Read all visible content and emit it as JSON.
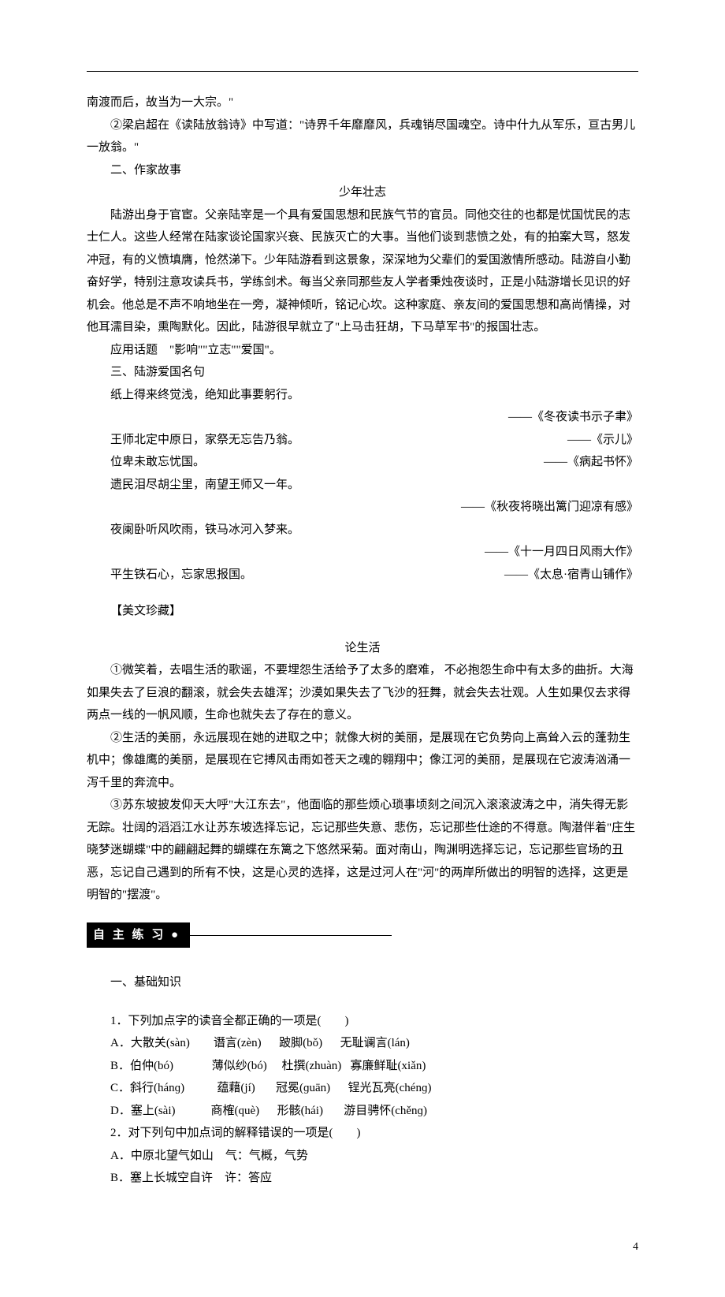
{
  "intro": {
    "p1": "南渡而后，故当为一大宗。\"",
    "p2": "②梁启超在《读陆放翁诗》中写道：\"诗界千年靡靡风，兵魂销尽国魂空。诗中什九从军乐，亘古男儿一放翁。\"",
    "h2": "二、作家故事",
    "title2": "少年壮志",
    "story": "陆游出身于官宦。父亲陆宰是一个具有爱国思想和民族气节的官员。同他交往的也都是忧国忧民的志士仁人。这些人经常在陆家谈论国家兴衰、民族灭亡的大事。当他们谈到悲愤之处，有的拍案大骂，怒发冲冠，有的义愤填膺，怆然涕下。少年陆游看到这景象，深深地为父辈们的爱国激情所感动。陆游自小勤奋好学，特别注意攻读兵书，学练剑术。每当父亲同那些友人学者秉烛夜谈时，正是小陆游增长见识的好机会。他总是不声不响地坐在一旁，凝神倾听，铭记心坎。这种家庭、亲友间的爱国思想和高尚情操，对他耳濡目染，熏陶默化。因此，陆游很早就立了\"上马击狂胡，下马草军书\"的报国壮志。",
    "topics": "应用话题　\"影响\"\"立志\"\"爱国\"。",
    "h3": "三、陆游爱国名句"
  },
  "quotes": [
    {
      "left": "纸上得来终觉浅，绝知此事要躬行。",
      "right": "——《冬夜读书示子聿》",
      "two_line": true
    },
    {
      "left": "王师北定中原日，家祭无忘告乃翁。",
      "right": "——《示儿》",
      "two_line": false
    },
    {
      "left": "位卑未敢忘忧国。",
      "right": "——《病起书怀》",
      "two_line": false
    },
    {
      "left": "遗民泪尽胡尘里，南望王师又一年。",
      "right": "——《秋夜将晓出篱门迎凉有感》",
      "two_line": true
    },
    {
      "left": "夜阑卧听风吹雨，铁马冰河入梦来。",
      "right": "——《十一月四日风雨大作》",
      "two_line": true
    },
    {
      "left": "平生铁石心，忘家思报国。",
      "right": "——《太息·宿青山铺作》",
      "two_line": false
    }
  ],
  "essay": {
    "bracket": "【美文珍藏】",
    "title": "论生活",
    "p1": "①微笑着，去唱生活的歌谣，不要埋怨生活给予了太多的磨难， 不必抱怨生命中有太多的曲折。大海如果失去了巨浪的翻滚，就会失去雄浑；沙漠如果失去了飞沙的狂舞，就会失去壮观。人生如果仅去求得两点一线的一帆风顺，生命也就失去了存在的意义。",
    "p2": "②生活的美丽，永远展现在她的进取之中；就像大树的美丽，是展现在它负势向上高耸入云的蓬勃生机中；像雄鹰的美丽，是展现在它搏风击雨如苍天之魂的翱翔中；像江河的美丽，是展现在它波涛汹涌一泻千里的奔流中。",
    "p3": "③苏东坡披发仰天大呼\"大江东去\"，他面临的那些烦心琐事顷刻之间沉入滚滚波涛之中，消失得无影无踪。壮阔的滔滔江水让苏东坡选择忘记，忘记那些失意、悲伤，忘记那些仕途的不得意。陶潜伴着\"庄生晓梦迷蝴蝶\"中的翩翩起舞的蝴蝶在东篱之下悠然采菊。面对南山，陶渊明选择忘记，忘记那些官场的丑恶，忘记自己遇到的所有不快，这是心灵的选择，这是过河人在\"河\"的两岸所做出的明智的选择，这更是明智的\"摆渡\"。"
  },
  "practice": {
    "badge": "自 主 练 习 ●",
    "h1": "一、基础知识",
    "q1": {
      "stem": "1．下列加点字的读音全都正确的一项是(　　)",
      "opts": [
        "A．大散关(sàn)        谮言(zèn)　  跛脚(bǒ)      无耻谰言(lán)",
        "B．伯仲(bó)　         薄似纱(bó)　 杜撰(zhuàn)   寡廉鲜耻(xiǎn)",
        "C．斜行(hánɡ)　       蕴藉(jí)　   冠冕(ɡuān)　  锃光瓦亮(chénɡ)",
        "D．塞上(sài)　        商榷(què)　  形骸(hái)　   游目骋怀(chěnɡ)"
      ]
    },
    "q2": {
      "stem": "2．对下列句中加点词的解释错误的一项是(　　)",
      "opts": [
        "A．中原北望气如山　气：气概，气势",
        "B．塞上长城空自许　许：答应"
      ]
    }
  },
  "page_num": "4"
}
